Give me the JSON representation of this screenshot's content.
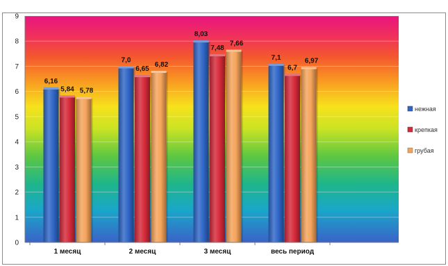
{
  "chart_data": {
    "type": "bar",
    "title": "",
    "xlabel": "",
    "ylabel": "",
    "categories": [
      "1 месяц",
      "2 месяц",
      "3 месяц",
      "весь период"
    ],
    "series": [
      {
        "name": "нежная",
        "values": [
          6.16,
          7.0,
          8.03,
          7.1
        ],
        "labels": [
          "6,16",
          "7,0",
          "8,03",
          "7,1"
        ],
        "color": "#2f67c8"
      },
      {
        "name": "крепкая",
        "values": [
          5.84,
          6.65,
          7.48,
          6.7
        ],
        "labels": [
          "5,84",
          "6,65",
          "7,48",
          "6,7"
        ],
        "color": "#d62a3a"
      },
      {
        "name": "грубая",
        "values": [
          5.78,
          6.82,
          7.66,
          6.97
        ],
        "labels": [
          "5,78",
          "6,82",
          "7,66",
          "6,97"
        ],
        "color": "#f5a35a"
      }
    ],
    "ylim": [
      0,
      9
    ],
    "yticks": [
      0,
      1,
      2,
      3,
      4,
      5,
      6,
      7,
      8,
      9
    ],
    "grid": true,
    "legend_position": "right",
    "background": "rainbow gradient"
  }
}
